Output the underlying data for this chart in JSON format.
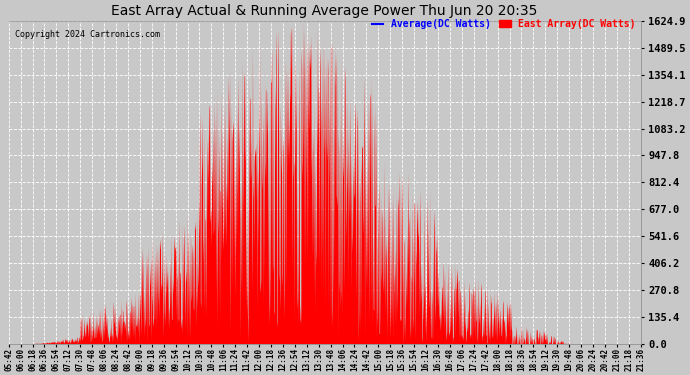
{
  "title": "East Array Actual & Running Average Power Thu Jun 20 20:35",
  "copyright": "Copyright 2024 Cartronics.com",
  "legend_avg": "Average(DC Watts)",
  "legend_east": "East Array(DC Watts)",
  "yticks": [
    0.0,
    135.4,
    270.8,
    406.2,
    541.6,
    677.0,
    812.4,
    947.8,
    1083.2,
    1218.7,
    1354.1,
    1489.5,
    1624.9
  ],
  "ymax": 1624.9,
  "bg_color": "#c8c8c8",
  "plot_bg_color": "#c8c8c8",
  "east_color": "#ff0000",
  "avg_color": "#0000cc",
  "grid_color": "#ffffff",
  "avg_legend_color": "#0000ff",
  "east_legend_color": "#ff0000",
  "xtick_start_min": 342,
  "xtick_interval_min": 18,
  "num_xticks": 54,
  "xmin": 342,
  "xmax": 1222
}
